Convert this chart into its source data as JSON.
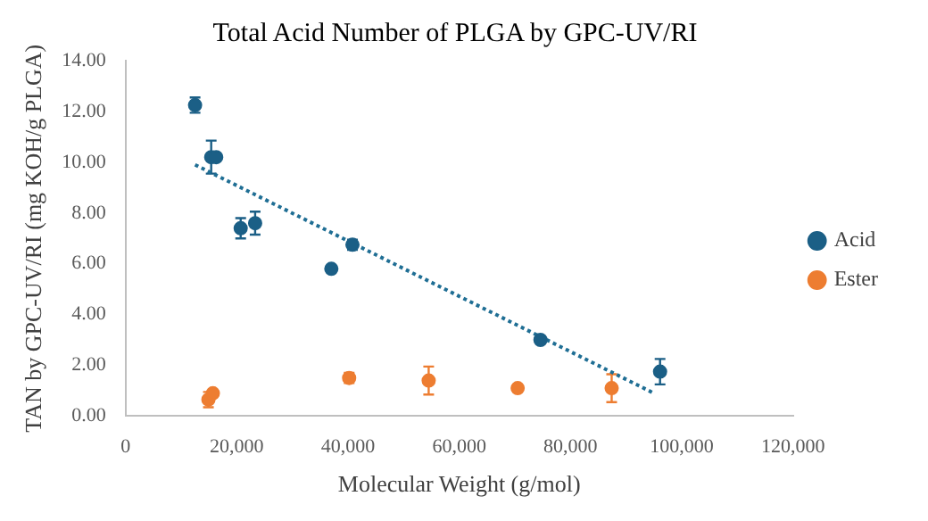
{
  "chart_data": {
    "type": "scatter",
    "title": "Total Acid Number of PLGA by GPC-UV/RI",
    "xlabel": "Molecular Weight (g/mol)",
    "ylabel": "TAN by GPC-UV/RI (mg KOH/g PLGA)",
    "xlim": [
      0,
      120000
    ],
    "ylim": [
      0,
      14
    ],
    "xticks": [
      {
        "value": 0,
        "label": "0"
      },
      {
        "value": 20000,
        "label": "20,000"
      },
      {
        "value": 40000,
        "label": "40,000"
      },
      {
        "value": 60000,
        "label": "60,000"
      },
      {
        "value": 80000,
        "label": "80,000"
      },
      {
        "value": 100000,
        "label": "100,000"
      },
      {
        "value": 120000,
        "label": "120,000"
      }
    ],
    "yticks": [
      {
        "value": 0,
        "label": "0.00"
      },
      {
        "value": 2,
        "label": "2.00"
      },
      {
        "value": 4,
        "label": "4.00"
      },
      {
        "value": 6,
        "label": "6.00"
      },
      {
        "value": 8,
        "label": "8.00"
      },
      {
        "value": 10,
        "label": "10.00"
      },
      {
        "value": 12,
        "label": "12.00"
      },
      {
        "value": 14,
        "label": "14.00"
      }
    ],
    "legend": "right",
    "marker": "circle",
    "grid": false,
    "series": [
      {
        "name": "Acid",
        "color": "#1b5f86",
        "x": [
          12500,
          15400,
          16300,
          20700,
          23300,
          37000,
          40800,
          74600,
          96100
        ],
        "values": [
          12.25,
          10.2,
          10.2,
          7.4,
          7.6,
          5.8,
          6.75,
          3.0,
          1.75
        ],
        "errors": [
          0.3,
          0.65,
          null,
          0.4,
          0.45,
          null,
          0.2,
          null,
          0.5
        ]
      },
      {
        "name": "Ester",
        "color": "#ed7d31",
        "x": [
          14900,
          15700,
          40200,
          54500,
          70500,
          87400
        ],
        "values": [
          0.65,
          0.9,
          1.5,
          1.4,
          1.1,
          1.1
        ],
        "errors": [
          0.3,
          null,
          0.2,
          0.55,
          null,
          0.55
        ]
      },
      {
        "type": "line",
        "color": "#1f6e94",
        "line_style": "dotted",
        "marker": "none",
        "x": [
          12500,
          95000
        ],
        "values": [
          9.9,
          0.9
        ]
      }
    ]
  }
}
